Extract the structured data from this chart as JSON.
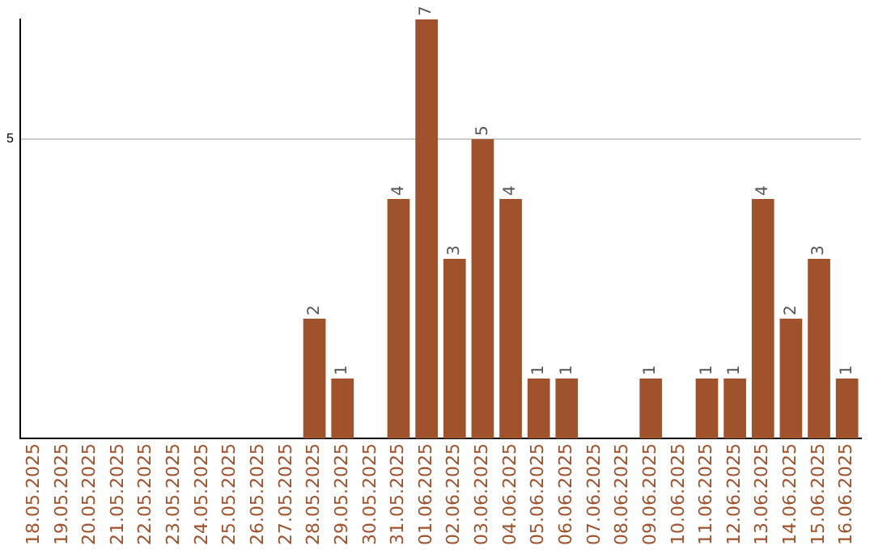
{
  "chart_data": {
    "type": "bar",
    "categories": [
      "18.05.2025",
      "19.05.2025",
      "20.05.2025",
      "21.05.2025",
      "22.05.2025",
      "23.05.2025",
      "24.05.2025",
      "25.05.2025",
      "26.05.2025",
      "27.05.2025",
      "28.05.2025",
      "29.05.2025",
      "30.05.2025",
      "31.05.2025",
      "01.06.2025",
      "02.06.2025",
      "03.06.2025",
      "04.06.2025",
      "05.06.2025",
      "06.06.2025",
      "07.06.2025",
      "08.06.2025",
      "09.06.2025",
      "10.06.2025",
      "11.06.2025",
      "12.06.2025",
      "13.06.2025",
      "14.06.2025",
      "15.06.2025",
      "16.06.2025"
    ],
    "values": [
      0,
      0,
      0,
      0,
      0,
      0,
      0,
      0,
      0,
      0,
      2,
      1,
      0,
      4,
      7,
      3,
      5,
      4,
      1,
      1,
      0,
      0,
      1,
      0,
      1,
      1,
      4,
      2,
      3,
      1
    ],
    "value_labels": [
      null,
      null,
      null,
      null,
      null,
      null,
      null,
      null,
      null,
      null,
      "2",
      "1",
      null,
      "4",
      "7",
      "3",
      "5",
      "4",
      "1",
      "1",
      null,
      null,
      "1",
      null,
      "1",
      "1",
      "4",
      "2",
      "3",
      "1"
    ],
    "color": "#a0522d",
    "ylim": [
      0,
      7
    ],
    "yticks": [
      5
    ],
    "grid": "y",
    "legend": false
  }
}
